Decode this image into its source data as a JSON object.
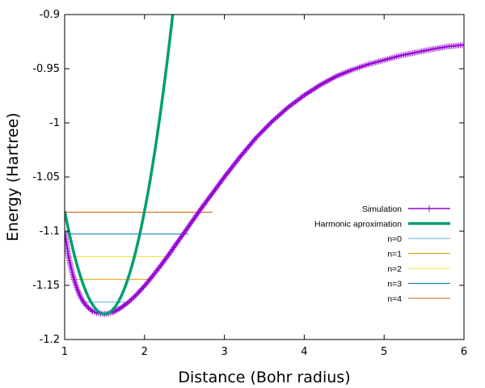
{
  "chart_data": {
    "type": "line",
    "xlabel": "Distance (Bohr radius)",
    "ylabel": "Energy (Hartree)",
    "xlim": [
      1,
      6
    ],
    "ylim": [
      -1.2,
      -0.9
    ],
    "xticks": [
      "1",
      "2",
      "3",
      "4",
      "5",
      "6"
    ],
    "yticks": [
      "-1.2",
      "-1.15",
      "-1.1",
      "-1.05",
      "-1",
      "-0.95",
      "-0.9"
    ],
    "grid": false,
    "legend_position": "right",
    "series": [
      {
        "name": "Simulation",
        "color": "#9400d3",
        "marker": "plus",
        "x": [
          1.0,
          1.05,
          1.1,
          1.15,
          1.2,
          1.25,
          1.3,
          1.35,
          1.4,
          1.45,
          1.5,
          1.55,
          1.6,
          1.65,
          1.7,
          1.8,
          1.9,
          2.0,
          2.1,
          2.2,
          2.3,
          2.4,
          2.5,
          2.6,
          2.7,
          2.8,
          2.9,
          3.0,
          3.2,
          3.4,
          3.6,
          3.8,
          4.0,
          4.2,
          4.4,
          4.6,
          4.8,
          5.0,
          5.2,
          5.4,
          5.6,
          5.8,
          6.0
        ],
        "y": [
          -1.101,
          -1.124,
          -1.14,
          -1.152,
          -1.161,
          -1.167,
          -1.171,
          -1.174,
          -1.1755,
          -1.1762,
          -1.1764,
          -1.176,
          -1.175,
          -1.173,
          -1.171,
          -1.1655,
          -1.1585,
          -1.1505,
          -1.1415,
          -1.132,
          -1.122,
          -1.1115,
          -1.101,
          -1.0905,
          -1.08,
          -1.07,
          -1.06,
          -1.05,
          -1.031,
          -1.0135,
          -0.9985,
          -0.9855,
          -0.9745,
          -0.965,
          -0.957,
          -0.951,
          -0.946,
          -0.942,
          -0.938,
          -0.935,
          -0.932,
          -0.9295,
          -0.928
        ]
      },
      {
        "name": "Harmonic aproximation",
        "color": "#009e73",
        "k": 0.38,
        "x0": 1.5,
        "y0": -1.1764
      },
      {
        "name": "n=0",
        "color": "#56b4e9",
        "y": -1.1655,
        "x": [
          1.2,
          1.8
        ]
      },
      {
        "name": "n=1",
        "color": "#e69f00",
        "y": -1.1445,
        "x": [
          1.07,
          2.05
        ]
      },
      {
        "name": "n=2",
        "color": "#f0e442",
        "y": -1.1235,
        "x": [
          1.03,
          2.3
        ]
      },
      {
        "name": "n=3",
        "color": "#0072b2",
        "y": -1.1025,
        "x": [
          1.0,
          2.55
        ]
      },
      {
        "name": "n=4",
        "color": "#d55e00",
        "y": -1.0825,
        "x": [
          1.0,
          2.85
        ]
      }
    ]
  }
}
